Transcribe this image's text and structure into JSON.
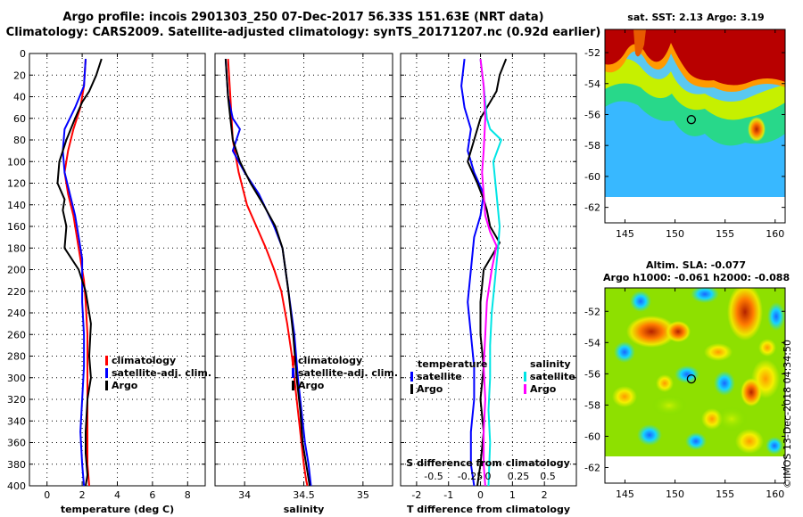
{
  "header": {
    "title_line1": "Argo profile: incois 2901303_250 07-Dec-2017 56.33S 151.63E (NRT data)",
    "title_line2": "Climatology: CARS2009. Satellite-adjusted climatology: synTS_20171207.nc (0.92d earlier)"
  },
  "colors": {
    "climatology": "#ff0000",
    "satellite": "#0000ff",
    "argo": "#000000",
    "sal_satellite": "#00e5e5",
    "sal_argo": "#ff00ff"
  },
  "chart_data": [
    {
      "type": "line",
      "name": "temperature-panel",
      "xlabel": "temperature (deg C)",
      "ylabel": "",
      "xlim": [
        -1,
        9
      ],
      "ylim": [
        400,
        0
      ],
      "xticks": [
        0,
        2,
        4,
        6,
        8
      ],
      "yticks": [
        0,
        20,
        40,
        60,
        80,
        100,
        120,
        140,
        160,
        180,
        200,
        220,
        240,
        260,
        280,
        300,
        320,
        340,
        360,
        380,
        400
      ],
      "grid": true,
      "legend": [
        "climatology",
        "satellite-adj. clim.",
        "Argo"
      ],
      "series": [
        {
          "name": "climatology",
          "color": "red",
          "x": [
            2.2,
            2.1,
            1.9,
            1.5,
            1.2,
            1.0,
            1.2,
            1.5,
            1.7,
            1.9,
            2.1,
            2.2,
            2.3,
            2.3,
            2.3,
            2.3,
            2.3,
            2.4
          ],
          "y": [
            5,
            30,
            50,
            70,
            90,
            110,
            130,
            150,
            170,
            190,
            210,
            230,
            260,
            290,
            320,
            350,
            380,
            400
          ]
        },
        {
          "name": "satellite-adj. clim.",
          "color": "blue",
          "x": [
            2.2,
            2.1,
            1.6,
            1.0,
            0.9,
            1.0,
            1.3,
            1.6,
            1.8,
            2.0,
            2.0,
            2.0,
            2.1,
            2.1,
            2.0,
            1.9,
            2.0,
            2.1
          ],
          "y": [
            5,
            30,
            50,
            70,
            90,
            110,
            130,
            150,
            170,
            190,
            210,
            230,
            260,
            290,
            320,
            350,
            380,
            400
          ]
        },
        {
          "name": "Argo",
          "color": "black",
          "x": [
            3.1,
            2.8,
            2.4,
            2.0,
            1.6,
            1.1,
            0.7,
            0.6,
            1.0,
            0.9,
            1.1,
            1.0,
            1.8,
            2.2,
            2.5,
            2.4,
            2.5,
            2.3,
            2.2,
            2.2,
            2.3,
            2.2
          ],
          "y": [
            5,
            20,
            35,
            45,
            60,
            80,
            100,
            120,
            135,
            145,
            160,
            180,
            200,
            220,
            250,
            280,
            300,
            320,
            350,
            370,
            390,
            400
          ]
        }
      ]
    },
    {
      "type": "line",
      "name": "salinity-panel",
      "xlabel": "salinity",
      "xlim": [
        33.75,
        35.25
      ],
      "ylim": [
        400,
        0
      ],
      "xticks": [
        34,
        34.5,
        35
      ],
      "xtick_labels": [
        "34",
        "34.5",
        "35"
      ],
      "grid": true,
      "legend": [
        "climatology",
        "satellite-adj. clim.",
        "Argo"
      ],
      "series": [
        {
          "name": "climatology",
          "color": "red",
          "x": [
            33.86,
            33.88,
            33.9,
            33.95,
            34.02,
            34.1,
            34.18,
            34.25,
            34.31,
            34.36,
            34.4,
            34.42,
            34.44,
            34.46,
            34.48,
            34.5,
            34.52,
            34.53
          ],
          "y": [
            5,
            40,
            80,
            110,
            140,
            160,
            180,
            200,
            220,
            250,
            280,
            300,
            320,
            340,
            360,
            380,
            395,
            400
          ]
        },
        {
          "name": "satellite-adj. clim.",
          "color": "blue",
          "x": [
            33.84,
            33.86,
            33.9,
            33.96,
            33.9,
            34.0,
            34.12,
            34.25,
            34.32,
            34.37,
            34.42,
            34.45,
            34.48,
            34.51,
            34.54,
            34.56
          ],
          "y": [
            5,
            40,
            60,
            70,
            90,
            110,
            130,
            160,
            180,
            220,
            260,
            300,
            330,
            360,
            380,
            400
          ]
        },
        {
          "name": "Argo",
          "color": "black",
          "x": [
            33.84,
            33.86,
            33.88,
            33.9,
            33.96,
            34.05,
            34.16,
            34.26,
            34.32,
            34.37,
            34.41,
            34.44,
            34.47,
            34.49,
            34.52,
            34.55
          ],
          "y": [
            5,
            40,
            60,
            80,
            100,
            120,
            140,
            160,
            180,
            220,
            260,
            300,
            330,
            360,
            380,
            400
          ]
        }
      ]
    },
    {
      "type": "line",
      "name": "difference-panel",
      "xlabel": "T difference from climatology",
      "top_label": "S difference from climatology",
      "xlim": [
        -2.5,
        3.0
      ],
      "ylim": [
        400,
        0
      ],
      "xticks": [
        -2,
        -1,
        0,
        1,
        2
      ],
      "s_xticks": [
        "-0.5",
        "-0.25",
        "0",
        "0.25",
        "0.5"
      ],
      "grid": true,
      "legend_left_title": "temperature",
      "legend_right_title": "salinity",
      "legend_left": [
        "satellite",
        "Argo"
      ],
      "legend_right": [
        "satellite",
        "Argo"
      ],
      "series": [
        {
          "name": "T satellite",
          "color": "blue",
          "x": [
            -0.5,
            -0.6,
            -0.5,
            -0.3,
            -0.4,
            -0.2,
            0.1,
            0.0,
            -0.2,
            -0.3,
            -0.4,
            -0.3,
            -0.2,
            -0.2,
            -0.3,
            -0.3,
            -0.2
          ],
          "y": [
            5,
            30,
            50,
            70,
            90,
            110,
            130,
            150,
            170,
            200,
            230,
            260,
            290,
            320,
            350,
            380,
            400
          ]
        },
        {
          "name": "T Argo",
          "color": "black",
          "x": [
            0.8,
            0.6,
            0.5,
            0.3,
            0.0,
            -0.2,
            -0.4,
            -0.1,
            0.1,
            0.2,
            0.3,
            0.6,
            0.1,
            0.0,
            0.0,
            0.1,
            0.0,
            0.1,
            0.0,
            -0.1
          ],
          "y": [
            5,
            20,
            35,
            45,
            60,
            80,
            100,
            120,
            135,
            145,
            160,
            175,
            200,
            230,
            260,
            290,
            320,
            350,
            380,
            400
          ]
        },
        {
          "name": "S satellite",
          "color": "cyan",
          "x": [
            0.0,
            0.1,
            0.2,
            0.3,
            0.65,
            0.4,
            0.5,
            0.6,
            0.55,
            0.45,
            0.35,
            0.3,
            0.3,
            0.25,
            0.3,
            0.25
          ],
          "y": [
            5,
            30,
            60,
            70,
            80,
            100,
            130,
            160,
            180,
            210,
            240,
            270,
            300,
            330,
            360,
            400
          ]
        },
        {
          "name": "S Argo",
          "color": "magenta",
          "x": [
            0.0,
            0.1,
            0.15,
            0.1,
            0.05,
            0.1,
            0.15,
            0.3,
            0.5,
            0.35,
            0.2,
            0.15,
            0.1,
            0.15,
            0.1,
            0.1,
            0.15
          ],
          "y": [
            5,
            30,
            60,
            90,
            110,
            130,
            150,
            165,
            178,
            200,
            230,
            260,
            290,
            320,
            350,
            380,
            400
          ]
        }
      ]
    },
    {
      "type": "heatmap",
      "name": "sst-map",
      "title": "sat. SST: 2.13 Argo: 3.19",
      "xlim": [
        143,
        161
      ],
      "ylim": [
        -63,
        -50.5
      ],
      "xticks": [
        145,
        150,
        155,
        160
      ],
      "yticks": [
        -52,
        -54,
        -56,
        -58,
        -60,
        -62
      ],
      "marker": {
        "lon": 151.63,
        "lat": -56.33
      }
    },
    {
      "type": "heatmap",
      "name": "sla-map",
      "title_line1": "Altim. SLA: -0.077",
      "title_line2": "Argo h1000: -0.061 h2000: -0.088",
      "xlim": [
        143,
        161
      ],
      "ylim": [
        -63,
        -50.5
      ],
      "xticks": [
        145,
        150,
        155,
        160
      ],
      "yticks": [
        -52,
        -54,
        -56,
        -58,
        -60,
        -62
      ],
      "marker": {
        "lon": 151.63,
        "lat": -56.33
      }
    }
  ],
  "footer": {
    "stamp": "©IMOS 13-Dec-2018 04:34:50"
  }
}
